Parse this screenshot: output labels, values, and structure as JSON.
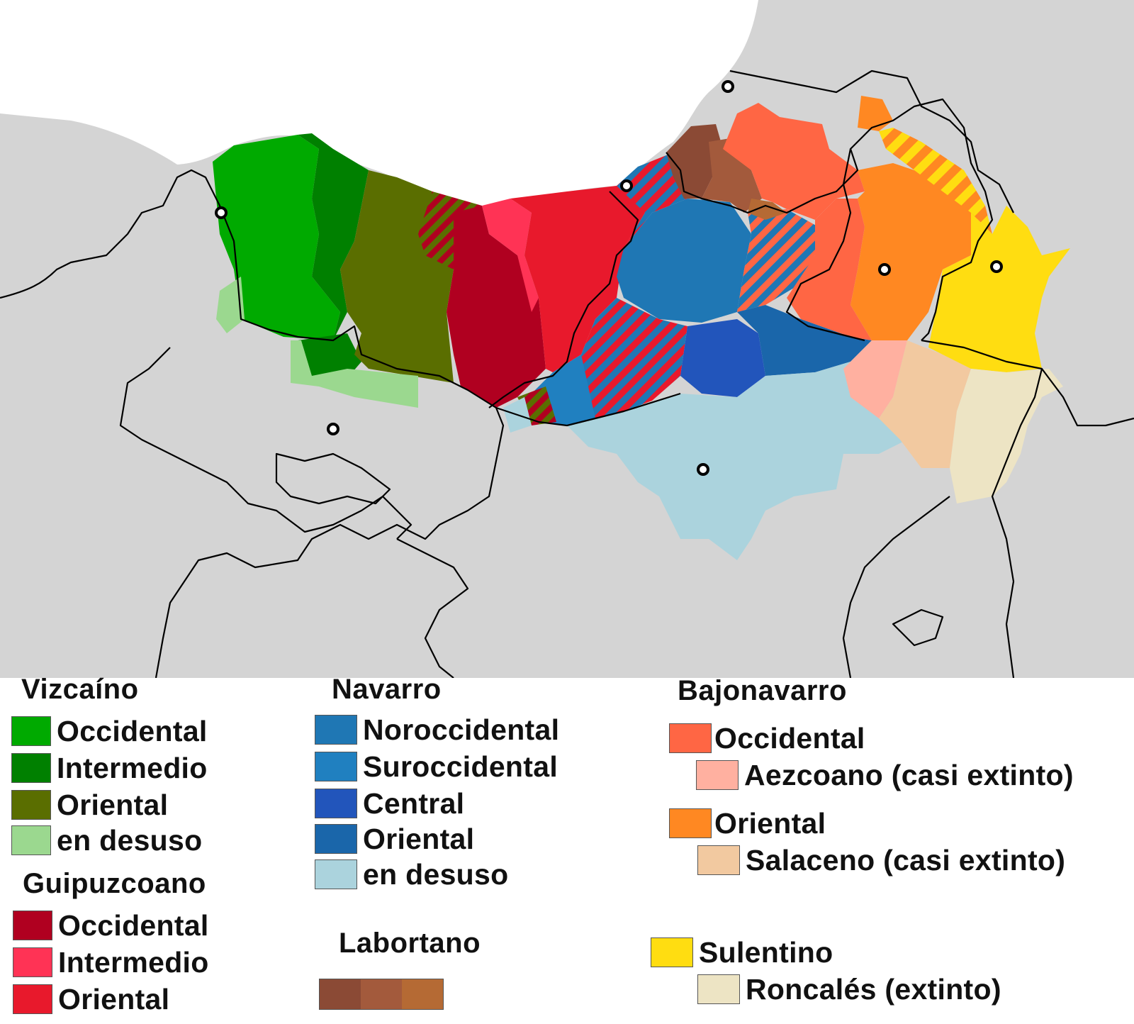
{
  "colors": {
    "land": "#d4d4d4",
    "sea": "#ffffff",
    "border": "#000000",
    "city_marker": "#000000"
  },
  "map": {
    "regions": [
      {
        "name": "Vizcaino Occidental",
        "color": "#00aa00"
      },
      {
        "name": "Vizcaino Intermedio",
        "color": "#008000"
      },
      {
        "name": "Vizcaino Oriental",
        "color": "#5a6e00"
      },
      {
        "name": "Vizcaino en desuso",
        "color": "#9bd88f"
      },
      {
        "name": "Guipuzcoano Occidental",
        "color": "#b00020"
      },
      {
        "name": "Guipuzcoano Intermedio",
        "color": "#ff3355"
      },
      {
        "name": "Guipuzcoano Oriental",
        "color": "#e8192c"
      },
      {
        "name": "Navarro Noroccidental",
        "color": "#1f77b4"
      },
      {
        "name": "Navarro Suroccidental",
        "color": "#2080c0"
      },
      {
        "name": "Navarro Central",
        "color": "#2255bb"
      },
      {
        "name": "Navarro Oriental",
        "color": "#1a66aa"
      },
      {
        "name": "Navarro en desuso",
        "color": "#abd3dd"
      },
      {
        "name": "Labortano 1",
        "color": "#8b4a35"
      },
      {
        "name": "Labortano 2",
        "color": "#a35a3c"
      },
      {
        "name": "Labortano 3",
        "color": "#b56a34"
      },
      {
        "name": "Bajonavarro Occidental",
        "color": "#ff6644"
      },
      {
        "name": "Aezcoano",
        "color": "#ffb0a0"
      },
      {
        "name": "Bajonavarro Oriental",
        "color": "#ff8822"
      },
      {
        "name": "Salaceno",
        "color": "#f2c9a0"
      },
      {
        "name": "Sulentino",
        "color": "#ffdd11"
      },
      {
        "name": "Roncales",
        "color": "#ede4c4"
      }
    ]
  },
  "legend": {
    "vizcaino": {
      "title": "Vizcaíno",
      "items": [
        {
          "label": "Occidental",
          "color": "#00aa00"
        },
        {
          "label": "Intermedio",
          "color": "#008000"
        },
        {
          "label": "Oriental",
          "color": "#5a6e00"
        },
        {
          "label": "en desuso",
          "color": "#9bd88f"
        }
      ]
    },
    "guipuzcoano": {
      "title": "Guipuzcoano",
      "items": [
        {
          "label": "Occidental",
          "color": "#b00020"
        },
        {
          "label": "Intermedio",
          "color": "#ff3355"
        },
        {
          "label": "Oriental",
          "color": "#e8192c"
        }
      ]
    },
    "navarro": {
      "title": "Navarro",
      "items": [
        {
          "label": "Noroccidental",
          "color": "#1f77b4"
        },
        {
          "label": "Suroccidental",
          "color": "#2080c0"
        },
        {
          "label": "Central",
          "color": "#2255bb"
        },
        {
          "label": "Oriental",
          "color": "#1a66aa"
        },
        {
          "label": "en desuso",
          "color": "#abd3dd"
        }
      ]
    },
    "labortano": {
      "title": "Labortano",
      "colors": [
        "#8b4a35",
        "#a35a3c",
        "#b56a34"
      ]
    },
    "bajonavarro": {
      "title": "Bajonavarro",
      "occidental": {
        "label": "Occidental",
        "color": "#ff6644"
      },
      "aezcoano": {
        "label": "Aezcoano (casi extinto)",
        "color": "#ffb0a0"
      },
      "oriental": {
        "label": "Oriental",
        "color": "#ff8822"
      },
      "salaceno": {
        "label": "Salaceno (casi extinto)",
        "color": "#f2c9a0"
      }
    },
    "sulentino": {
      "label": "Sulentino",
      "color": "#ffdd11",
      "roncales": {
        "label": "Roncalés (extinto)",
        "color": "#ede4c4"
      }
    }
  }
}
